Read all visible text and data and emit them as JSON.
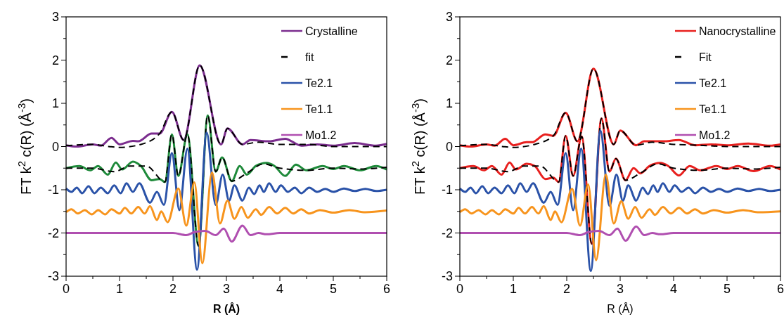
{
  "chart_data": [
    {
      "type": "line",
      "xlabel": "R (Å)",
      "ylabel": "FT k$^{2}$ c(R)   (Å$^{-3}$)",
      "xlim": [
        0,
        6
      ],
      "ylim": [
        -3,
        3
      ],
      "xticks": [
        0,
        {
          "value": 0.5,
          "label": null
        },
        1,
        {
          "value": 1.5,
          "label": null
        },
        2,
        {
          "value": 2.5,
          "label": null
        },
        3,
        {
          "value": 3.5,
          "label": null
        },
        4,
        {
          "value": 4.5,
          "label": null
        },
        5,
        {
          "value": 5.5,
          "label": null
        },
        6
      ],
      "yticks": [
        -3,
        {
          "value": -2.5,
          "label": null
        },
        -2,
        {
          "value": -1.5,
          "label": null
        },
        -1,
        {
          "value": -0.5,
          "label": null
        },
        0,
        {
          "value": 0.5,
          "label": null
        },
        1,
        {
          "value": 1.5,
          "label": null
        },
        2,
        {
          "value": 2.5,
          "label": null
        },
        3
      ],
      "grid": false,
      "legend": "top right",
      "series": [
        {
          "name": "Crystalline",
          "color": "#7b2d8e",
          "x": [
            0,
            0.2,
            0.5,
            0.65,
            0.85,
            1.0,
            1.25,
            1.35,
            1.6,
            1.75,
            1.98,
            2.2,
            2.5,
            2.9,
            3.02,
            3.3,
            3.45,
            3.8,
            4.1,
            4.4,
            4.7,
            5.0,
            5.4,
            5.8,
            6
          ],
          "values": [
            0.03,
            0.0,
            0.05,
            0.02,
            0.2,
            0.05,
            0.13,
            0.12,
            0.3,
            0.3,
            0.8,
            0.15,
            1.88,
            0.05,
            0.42,
            0.05,
            0.15,
            0.12,
            0.18,
            0.02,
            0.05,
            0.02,
            0.08,
            0.02,
            0.06
          ]
        },
        {
          "color": "#1e8a3a",
          "x": [
            0,
            0.25,
            0.45,
            0.6,
            0.78,
            0.93,
            1.05,
            1.25,
            1.4,
            1.6,
            1.75,
            1.85,
            1.98,
            2.1,
            2.27,
            2.48,
            2.65,
            2.8,
            2.92,
            3.1,
            3.25,
            3.38,
            3.55,
            3.75,
            3.9,
            4.1,
            4.3,
            4.5,
            4.8,
            5.0,
            5.2,
            5.5,
            5.8,
            6.0
          ],
          "values": [
            -0.5,
            -0.45,
            -0.55,
            -0.45,
            -0.65,
            -0.37,
            -0.53,
            -0.35,
            -0.45,
            -0.78,
            -0.75,
            -0.82,
            0.28,
            -0.68,
            0.28,
            -2.3,
            0.72,
            -0.58,
            -0.25,
            -0.8,
            -0.45,
            -0.65,
            -0.45,
            -0.38,
            -0.45,
            -0.68,
            -0.42,
            -0.55,
            -0.45,
            -0.52,
            -0.45,
            -0.55,
            -0.45,
            -0.53
          ]
        },
        {
          "name": "fit",
          "color": "#000000",
          "line_style": "dashed",
          "x": [
            0,
            0.5,
            0.8,
            1.0,
            1.4,
            1.75,
            1.98,
            2.2,
            2.5,
            2.9,
            3.02,
            3.3,
            3.6,
            4.0,
            4.5,
            5.0,
            6
          ],
          "values": [
            0.02,
            0.05,
            0.0,
            -0.02,
            0.05,
            0.3,
            0.8,
            0.15,
            1.88,
            0.05,
            0.42,
            0.05,
            0.1,
            0.05,
            0.05,
            0.0,
            0.0
          ]
        },
        {
          "color": "#000000",
          "line_style": "dashed",
          "x": [
            0,
            0.5,
            0.9,
            1.2,
            1.5,
            1.85,
            1.98,
            2.1,
            2.27,
            2.48,
            2.65,
            2.8,
            2.92,
            3.1,
            3.4,
            3.7,
            4.0,
            4.5,
            5.0,
            5.5,
            6
          ],
          "values": [
            -0.5,
            -0.5,
            -0.58,
            -0.45,
            -0.45,
            -0.82,
            0.28,
            -0.68,
            0.28,
            -2.3,
            0.72,
            -0.58,
            -0.25,
            -0.8,
            -0.6,
            -0.4,
            -0.5,
            -0.55,
            -0.5,
            -0.52,
            -0.48
          ]
        },
        {
          "name": "Te2.1",
          "color": "#2a52a8",
          "x": [
            0,
            0.1,
            0.2,
            0.3,
            0.42,
            0.53,
            0.65,
            0.78,
            0.9,
            1.02,
            1.13,
            1.25,
            1.37,
            1.57,
            1.7,
            1.83,
            1.98,
            2.12,
            2.27,
            2.45,
            2.63,
            2.8,
            2.93,
            3.05,
            3.15,
            3.3,
            3.42,
            3.52,
            3.62,
            3.7,
            3.8,
            3.92,
            4.02,
            4.15,
            4.28,
            4.4,
            4.55,
            4.7,
            4.85,
            5.0,
            5.2,
            5.4,
            5.6,
            5.8,
            6
          ],
          "values": [
            -0.97,
            -1.05,
            -0.95,
            -1.08,
            -0.92,
            -1.08,
            -0.95,
            -1.08,
            -0.9,
            -1.08,
            -0.85,
            -1.05,
            -0.85,
            -1.3,
            -1.05,
            -1.35,
            -0.15,
            -1.47,
            -0.05,
            -2.85,
            0.32,
            -1.35,
            -0.65,
            -1.25,
            -0.9,
            -1.25,
            -0.95,
            -1.1,
            -0.9,
            -1.05,
            -0.85,
            -1.05,
            -0.9,
            -1.05,
            -0.95,
            -1.08,
            -0.95,
            -1.05,
            -0.98,
            -1.05,
            -0.97,
            -1.03,
            -0.98,
            -1.03,
            -1.0
          ]
        },
        {
          "name": "Te1.1",
          "color": "#f7941d",
          "x": [
            0,
            0.1,
            0.22,
            0.35,
            0.48,
            0.6,
            0.73,
            0.85,
            1.0,
            1.1,
            1.22,
            1.35,
            1.47,
            1.57,
            1.7,
            1.78,
            1.9,
            2.1,
            2.25,
            2.4,
            2.55,
            2.73,
            2.88,
            3.02,
            3.15,
            3.28,
            3.4,
            3.55,
            3.65,
            3.8,
            3.95,
            4.1,
            4.25,
            4.4,
            4.55,
            4.75,
            5.0,
            5.3,
            5.6,
            6
          ],
          "values": [
            -1.52,
            -1.45,
            -1.55,
            -1.47,
            -1.57,
            -1.47,
            -1.57,
            -1.45,
            -1.55,
            -1.42,
            -1.55,
            -1.4,
            -1.55,
            -1.38,
            -1.7,
            -1.5,
            -1.75,
            -0.97,
            -1.83,
            -0.83,
            -2.7,
            -0.6,
            -1.78,
            -1.25,
            -1.67,
            -1.4,
            -1.65,
            -1.45,
            -1.58,
            -1.4,
            -1.55,
            -1.42,
            -1.55,
            -1.45,
            -1.55,
            -1.47,
            -1.53,
            -1.47,
            -1.52,
            -1.48
          ]
        },
        {
          "name": "Mo1.2",
          "color": "#b04fb0",
          "x": [
            0,
            1.5,
            2.0,
            2.25,
            2.4,
            2.6,
            2.8,
            2.95,
            3.1,
            3.3,
            3.45,
            3.6,
            3.75,
            4.0,
            6
          ],
          "values": [
            -2,
            -2,
            -2,
            -2.05,
            -1.98,
            -1.95,
            -2.05,
            -1.9,
            -2.2,
            -1.83,
            -2.05,
            -2,
            -2.03,
            -2,
            -2
          ]
        }
      ]
    },
    {
      "type": "line",
      "xlabel": "R (Å)",
      "ylabel": "FT k$^{2}$ c(R)   (Å$^{-3}$)",
      "xlim": [
        0,
        6
      ],
      "ylim": [
        -3,
        3
      ],
      "xticks": [
        0,
        {
          "value": 0.5,
          "label": null
        },
        1,
        {
          "value": 1.5,
          "label": null
        },
        2,
        {
          "value": 2.5,
          "label": null
        },
        3,
        {
          "value": 3.5,
          "label": null
        },
        4,
        {
          "value": 4.5,
          "label": null
        },
        5,
        {
          "value": 5.5,
          "label": null
        },
        6
      ],
      "yticks": [
        -3,
        {
          "value": -2.5,
          "label": null
        },
        -2,
        {
          "value": -1.5,
          "label": null
        },
        -1,
        {
          "value": -0.5,
          "label": null
        },
        0,
        {
          "value": 0.5,
          "label": null
        },
        1,
        {
          "value": 1.5,
          "label": null
        },
        2,
        {
          "value": 2.5,
          "label": null
        },
        3
      ],
      "grid": false,
      "legend": "top right",
      "series": [
        {
          "name": "Nanocrystalline",
          "color": "#e8201e",
          "x": [
            0,
            0.2,
            0.5,
            0.65,
            0.85,
            1.0,
            1.25,
            1.35,
            1.6,
            1.75,
            1.98,
            2.2,
            2.5,
            2.88,
            3.0,
            3.3,
            3.45,
            3.8,
            4.1,
            4.4,
            4.7,
            5.0,
            5.4,
            5.8,
            6
          ],
          "values": [
            0.03,
            0.0,
            0.05,
            0.02,
            0.18,
            0.03,
            0.1,
            0.1,
            0.28,
            0.25,
            0.78,
            0.12,
            1.8,
            0.05,
            0.37,
            0.03,
            0.12,
            0.12,
            0.15,
            0.03,
            0.05,
            0.03,
            0.07,
            0.02,
            0.05
          ]
        },
        {
          "color": "#e8201e",
          "x": [
            0,
            0.25,
            0.45,
            0.6,
            0.78,
            0.93,
            1.05,
            1.25,
            1.4,
            1.6,
            1.75,
            1.85,
            1.98,
            2.12,
            2.28,
            2.47,
            2.65,
            2.8,
            2.92,
            3.1,
            3.25,
            3.38,
            3.55,
            3.75,
            3.9,
            4.1,
            4.3,
            4.5,
            4.8,
            5.0,
            5.2,
            5.5,
            5.8,
            6.0
          ],
          "values": [
            -0.5,
            -0.45,
            -0.55,
            -0.45,
            -0.65,
            -0.37,
            -0.53,
            -0.4,
            -0.45,
            -0.75,
            -0.72,
            -0.82,
            0.25,
            -0.68,
            0.23,
            -2.25,
            0.65,
            -0.58,
            -0.28,
            -0.78,
            -0.5,
            -0.62,
            -0.45,
            -0.38,
            -0.45,
            -0.67,
            -0.45,
            -0.55,
            -0.45,
            -0.52,
            -0.45,
            -0.57,
            -0.45,
            -0.53
          ]
        },
        {
          "name": "Fit",
          "color": "#000000",
          "line_style": "dashed",
          "x": [
            0,
            0.5,
            0.8,
            1.0,
            1.4,
            1.75,
            1.98,
            2.2,
            2.5,
            2.88,
            3.0,
            3.3,
            3.6,
            4.0,
            4.5,
            5.0,
            6
          ],
          "values": [
            0.02,
            0.05,
            0.0,
            -0.02,
            0.05,
            0.25,
            0.78,
            0.12,
            1.8,
            0.05,
            0.37,
            0.03,
            0.1,
            0.05,
            0.03,
            0.0,
            0.0
          ]
        },
        {
          "color": "#000000",
          "line_style": "dashed",
          "x": [
            0,
            0.5,
            0.9,
            1.2,
            1.5,
            1.85,
            1.98,
            2.12,
            2.28,
            2.47,
            2.65,
            2.8,
            2.92,
            3.1,
            3.4,
            3.7,
            4.0,
            4.5,
            5.0,
            5.5,
            6
          ],
          "values": [
            -0.5,
            -0.5,
            -0.58,
            -0.45,
            -0.45,
            -0.82,
            0.25,
            -0.68,
            0.23,
            -2.25,
            0.65,
            -0.58,
            -0.28,
            -0.78,
            -0.6,
            -0.4,
            -0.5,
            -0.55,
            -0.5,
            -0.52,
            -0.48
          ]
        },
        {
          "name": "Te2.1",
          "color": "#2a52a8",
          "x": [
            0,
            0.1,
            0.2,
            0.3,
            0.42,
            0.53,
            0.65,
            0.78,
            0.9,
            1.02,
            1.13,
            1.25,
            1.37,
            1.57,
            1.7,
            1.83,
            1.98,
            2.12,
            2.27,
            2.45,
            2.63,
            2.8,
            2.93,
            3.05,
            3.15,
            3.3,
            3.42,
            3.52,
            3.62,
            3.7,
            3.8,
            3.92,
            4.02,
            4.15,
            4.28,
            4.4,
            4.55,
            4.7,
            4.85,
            5.0,
            5.2,
            5.4,
            5.6,
            5.8,
            6
          ],
          "values": [
            -0.97,
            -1.05,
            -0.95,
            -1.08,
            -0.92,
            -1.08,
            -0.95,
            -1.08,
            -0.9,
            -1.08,
            -0.85,
            -1.05,
            -0.85,
            -1.3,
            -1.05,
            -1.35,
            -0.15,
            -1.47,
            -0.05,
            -2.88,
            0.37,
            -1.37,
            -0.65,
            -1.25,
            -0.9,
            -1.25,
            -0.95,
            -1.1,
            -0.9,
            -1.05,
            -0.85,
            -1.05,
            -0.9,
            -1.05,
            -0.95,
            -1.08,
            -0.95,
            -1.05,
            -0.98,
            -1.05,
            -0.97,
            -1.03,
            -0.98,
            -1.03,
            -1.0
          ]
        },
        {
          "name": "Te1.1",
          "color": "#f7941d",
          "x": [
            0,
            0.1,
            0.22,
            0.35,
            0.48,
            0.6,
            0.73,
            0.85,
            1.0,
            1.1,
            1.22,
            1.35,
            1.47,
            1.57,
            1.7,
            1.78,
            1.9,
            2.1,
            2.25,
            2.4,
            2.55,
            2.73,
            2.88,
            3.02,
            3.15,
            3.28,
            3.4,
            3.55,
            3.65,
            3.8,
            3.95,
            4.1,
            4.25,
            4.4,
            4.55,
            4.75,
            5.0,
            5.3,
            5.6,
            6
          ],
          "values": [
            -1.52,
            -1.45,
            -1.55,
            -1.47,
            -1.57,
            -1.47,
            -1.57,
            -1.45,
            -1.55,
            -1.42,
            -1.55,
            -1.4,
            -1.55,
            -1.38,
            -1.7,
            -1.5,
            -1.75,
            -0.98,
            -1.83,
            -0.88,
            -2.63,
            -0.65,
            -1.78,
            -1.27,
            -1.67,
            -1.4,
            -1.65,
            -1.45,
            -1.58,
            -1.4,
            -1.55,
            -1.42,
            -1.55,
            -1.45,
            -1.55,
            -1.47,
            -1.53,
            -1.47,
            -1.52,
            -1.5
          ]
        },
        {
          "name": "Mo1.2",
          "color": "#b04fb0",
          "x": [
            0,
            1.5,
            2.0,
            2.25,
            2.4,
            2.6,
            2.8,
            2.95,
            3.1,
            3.3,
            3.45,
            3.6,
            3.75,
            4.0,
            6
          ],
          "values": [
            -2,
            -2,
            -2,
            -2.05,
            -1.98,
            -1.95,
            -2.05,
            -1.9,
            -2.18,
            -1.85,
            -2.05,
            -2,
            -2.03,
            -2,
            -2
          ]
        }
      ]
    }
  ]
}
